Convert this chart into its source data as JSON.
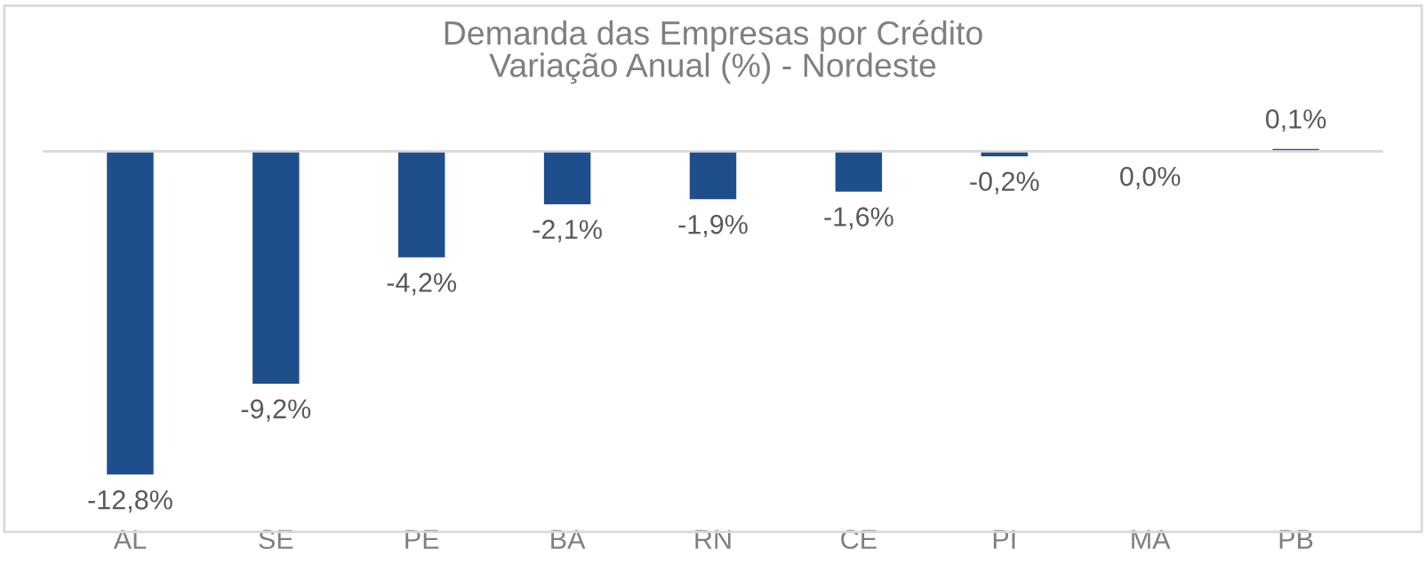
{
  "chart_data": {
    "type": "bar",
    "title": "Demanda das Empresas por Crédito\nVariação Anual (%) - Nordeste",
    "categories": [
      "AL",
      "SE",
      "PE",
      "BA",
      "RN",
      "CE",
      "PI",
      "MA",
      "PB"
    ],
    "values": [
      -12.8,
      -9.2,
      -4.2,
      -2.1,
      -1.9,
      -1.6,
      -0.2,
      0.0,
      0.1
    ],
    "value_labels": [
      "-12,8%",
      "-9,2%",
      "-4,2%",
      "-2,1%",
      "-1,9%",
      "-1,6%",
      "-0,2%",
      "0,0%",
      "0,1%"
    ],
    "color": "#1f4e8c",
    "grid": false,
    "legend": false
  }
}
